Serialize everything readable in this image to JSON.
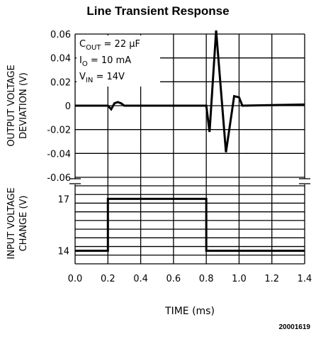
{
  "chart_data": {
    "type": "line",
    "title": "Line Transient Response",
    "xlabel": "TIME (ms)",
    "x_ticks": [
      "0.0",
      "0.2",
      "0.4",
      "0.6",
      "0.8",
      "1.0",
      "1.2",
      "1.4"
    ],
    "xlim": [
      0,
      1.4
    ],
    "grid": true,
    "figure_id": "20001619",
    "annotations": {
      "cout": {
        "base": "C",
        "sub": "OUT",
        "rest": " = 22 μF"
      },
      "io": {
        "base": "I",
        "sub": "O",
        "rest": " = 10 mA"
      },
      "vin": {
        "base": "V",
        "sub": "IN",
        "rest": " = 14V"
      }
    },
    "panels": [
      {
        "name": "output",
        "ylabel_lines": [
          "OUTPUT VOLTAGE",
          "DEVIATION (V)"
        ],
        "y_ticks": [
          "0.06",
          "0.04",
          "0.02",
          "0",
          "-0.02",
          "-0.04",
          "-0.06"
        ],
        "ylim": [
          -0.06,
          0.06
        ],
        "series": [
          {
            "x": [
              0.0,
              0.19,
              0.2,
              0.22,
              0.24,
              0.26,
              0.28,
              0.3,
              0.32,
              0.79,
              0.8,
              0.82,
              0.86,
              0.92,
              0.97,
              1.0,
              1.02,
              1.4
            ],
            "y": [
              0,
              0,
              0,
              -0.003,
              0.002,
              0.003,
              0.002,
              0,
              0,
              0,
              0,
              -0.022,
              0.063,
              -0.039,
              0.008,
              0.007,
              0,
              0.001
            ]
          }
        ]
      },
      {
        "name": "input",
        "ylabel_lines": [
          "INPUT VOLTAGE",
          "CHANGE (V)"
        ],
        "y_ticks": [
          "17",
          "14"
        ],
        "ylim": [
          13.25,
          17.75
        ],
        "series": [
          {
            "x": [
              0.0,
              0.2,
              0.2,
              0.8,
              0.8,
              1.4
            ],
            "y": [
              14,
              14,
              17,
              17,
              14,
              14
            ]
          }
        ]
      }
    ]
  }
}
